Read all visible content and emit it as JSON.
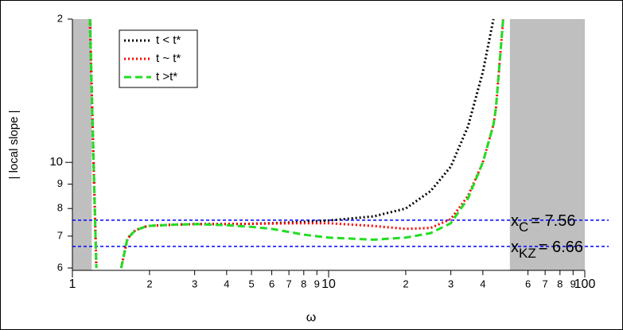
{
  "chart_data": {
    "type": "line",
    "xlabel": "ω",
    "ylabel": "| local slope |",
    "log_x": true,
    "log_y": true,
    "xlim": [
      1,
      100
    ],
    "ylim": [
      6,
      20
    ],
    "xticks": [
      1,
      {
        "value": 2,
        "label": "2"
      },
      {
        "value": 3,
        "label": "3"
      },
      {
        "value": 4,
        "label": "4"
      },
      {
        "value": 5,
        "label": "5"
      },
      {
        "value": 6,
        "label": "6"
      },
      {
        "value": 7,
        "label": "7"
      },
      {
        "value": 8,
        "label": "8"
      },
      {
        "value": 9,
        "label": "9"
      },
      10,
      {
        "value": 20,
        "label": "2"
      },
      {
        "value": 30,
        "label": "3"
      },
      {
        "value": 40,
        "label": "4"
      },
      {
        "value": 60,
        "label": "6"
      },
      {
        "value": 70,
        "label": "7"
      },
      {
        "value": 80,
        "label": "8"
      },
      {
        "value": 90,
        "label": "9"
      },
      100
    ],
    "yticks": [
      6,
      7,
      8,
      9,
      10,
      {
        "value": 20,
        "label": "2"
      }
    ],
    "legend": "upper-left",
    "shaded_regions": [
      {
        "x": [
          1,
          1.19
        ],
        "color": "#bfbfbf"
      },
      {
        "x": [
          51,
          100
        ],
        "color": "#bfbfbf"
      }
    ],
    "hlines": [
      {
        "value": 7.56,
        "color": "#0000ff",
        "label": "x",
        "sub": "C",
        "text": "= 7.56"
      },
      {
        "value": 6.66,
        "color": "#0000ff",
        "label": "x",
        "sub": "KZ",
        "text": "= 6.66"
      }
    ],
    "x": [
      1.17,
      1.19,
      1.21,
      1.24,
      1.4,
      1.55,
      1.64,
      1.76,
      1.96,
      2.5,
      3,
      4,
      5,
      6,
      8,
      10,
      15,
      20,
      25,
      30,
      35,
      40,
      44,
      45,
      48
    ],
    "series": [
      {
        "name": "t < t*",
        "color": "#000000",
        "style": "dotted",
        "values": [
          20,
          14.2,
          9.86,
          6,
          null,
          6,
          6.92,
          7.2,
          7.35,
          7.4,
          7.42,
          7.42,
          7.43,
          7.45,
          7.5,
          7.55,
          7.7,
          8.0,
          8.7,
          9.8,
          11.9,
          15.5,
          20,
          null,
          null
        ]
      },
      {
        "name": "t ~ t*",
        "color": "#ff0000",
        "style": "dotted",
        "values": [
          20,
          14.2,
          9.86,
          6,
          null,
          6,
          6.92,
          7.2,
          7.35,
          7.4,
          7.42,
          7.42,
          7.43,
          7.44,
          7.45,
          7.45,
          7.35,
          7.25,
          7.28,
          7.6,
          8.5,
          10,
          12,
          13,
          20
        ]
      },
      {
        "name": "t >t*",
        "color": "#22dd22",
        "style": "dashed",
        "values": [
          20,
          14.2,
          9.86,
          6,
          null,
          6,
          6.92,
          7.2,
          7.35,
          7.4,
          7.42,
          7.38,
          7.32,
          7.25,
          7.05,
          6.95,
          6.88,
          6.95,
          7.1,
          7.45,
          8.4,
          10,
          12,
          13,
          20
        ]
      }
    ]
  }
}
